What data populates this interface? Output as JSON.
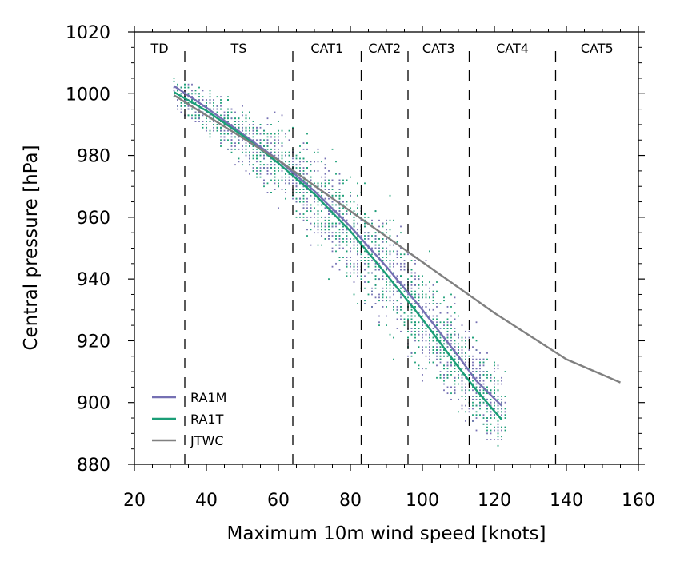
{
  "chart_data": {
    "type": "scatter",
    "xlabel": "Maximum 10m wind speed [knots]",
    "ylabel": "Central pressure [hPa]",
    "xlim": [
      20,
      160
    ],
    "ylim": [
      880,
      1020
    ],
    "x_ticks": [
      20,
      40,
      60,
      80,
      100,
      120,
      140,
      160
    ],
    "y_ticks": [
      880,
      900,
      920,
      940,
      960,
      980,
      1000,
      1020
    ],
    "x_tick_labels": [
      "20",
      "40",
      "60",
      "80",
      "100",
      "120",
      "140",
      "160"
    ],
    "y_tick_labels": [
      "880",
      "900",
      "920",
      "940",
      "960",
      "980",
      "1000",
      "1020"
    ],
    "category_boundaries": [
      34,
      64,
      83,
      96,
      113,
      137
    ],
    "categories": [
      {
        "label": "TD",
        "x": 27
      },
      {
        "label": "TS",
        "x": 49
      },
      {
        "label": "CAT1",
        "x": 73.5
      },
      {
        "label": "CAT2",
        "x": 89.5
      },
      {
        "label": "CAT3",
        "x": 104.5
      },
      {
        "label": "CAT4",
        "x": 125
      },
      {
        "label": "CAT5",
        "x": 148.5
      }
    ],
    "legend_position": "bottom-left",
    "colors": {
      "RA1M": "#7570b3",
      "RA1T": "#1b9e77",
      "JTWC": "#808080"
    },
    "series": [
      {
        "name": "RA1M",
        "kind": "line",
        "color": "#7570b3",
        "x": [
          31,
          40,
          50,
          60,
          70,
          80,
          90,
          100,
          110,
          115,
          122
        ],
        "y": [
          1002.5,
          995.5,
          987,
          978.5,
          968.5,
          957,
          944,
          930,
          915,
          907,
          899
        ]
      },
      {
        "name": "RA1T",
        "kind": "line",
        "color": "#1b9e77",
        "x": [
          31,
          40,
          50,
          60,
          70,
          80,
          90,
          100,
          110,
          115,
          122
        ],
        "y": [
          1000.5,
          994.5,
          986.5,
          977.5,
          967.5,
          955.5,
          941.5,
          927,
          911.5,
          904,
          894.5
        ]
      },
      {
        "name": "JTWC",
        "kind": "line",
        "color": "#808080",
        "x": [
          31,
          60,
          80,
          100,
          120,
          140,
          155
        ],
        "y": [
          999.5,
          978.5,
          962,
          945.5,
          929,
          914,
          906.5
        ]
      }
    ],
    "scatter": {
      "description_of_cloud": "dense point cloud for RA1M (purple) and RA1T (green) model samples",
      "RA1M_color": "#7570b3",
      "RA1T_color": "#1b9e77",
      "x_range": [
        31,
        123
      ],
      "pressure_fit": {
        "x": [
          31,
          50,
          70,
          90,
          110,
          122
        ],
        "y": [
          1001,
          986.5,
          968,
          943,
          913,
          897
        ]
      },
      "spread_hPa": {
        "x": [
          31,
          60,
          90,
          122
        ],
        "y": [
          3,
          8,
          12,
          8
        ]
      }
    }
  }
}
